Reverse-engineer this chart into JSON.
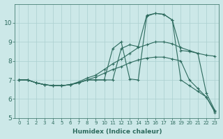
{
  "xlabel": "Humidex (Indice chaleur)",
  "background_color": "#cce8e8",
  "grid_color": "#aacfcf",
  "line_color": "#2d6b5e",
  "xlim": [
    -0.5,
    23.5
  ],
  "ylim": [
    5,
    11
  ],
  "yticks": [
    5,
    6,
    7,
    8,
    9,
    10
  ],
  "xticks": [
    0,
    1,
    2,
    3,
    4,
    5,
    6,
    7,
    8,
    9,
    10,
    11,
    12,
    13,
    14,
    15,
    16,
    17,
    18,
    19,
    20,
    21,
    22,
    23
  ],
  "lines": [
    {
      "x": [
        0,
        1,
        2,
        3,
        4,
        5,
        6,
        7,
        8,
        9,
        10,
        11,
        12,
        13,
        14,
        15,
        16,
        17,
        18,
        19,
        20,
        21,
        22,
        23
      ],
      "y": [
        7.0,
        7.0,
        6.85,
        6.75,
        6.7,
        6.7,
        6.75,
        6.9,
        7.1,
        7.25,
        7.55,
        7.85,
        8.1,
        8.4,
        8.7,
        8.85,
        9.0,
        9.0,
        8.9,
        8.7,
        8.55,
        8.4,
        8.3,
        8.25
      ]
    },
    {
      "x": [
        0,
        1,
        2,
        3,
        4,
        5,
        6,
        7,
        8,
        9,
        10,
        11,
        12,
        13,
        14,
        15,
        16,
        17,
        18,
        19,
        20,
        21,
        22,
        23
      ],
      "y": [
        7.0,
        7.0,
        6.85,
        6.75,
        6.7,
        6.7,
        6.75,
        6.85,
        7.0,
        7.15,
        7.35,
        7.55,
        7.7,
        7.9,
        8.05,
        8.15,
        8.2,
        8.2,
        8.1,
        8.0,
        7.0,
        6.55,
        6.1,
        5.3
      ]
    },
    {
      "x": [
        0,
        1,
        2,
        3,
        4,
        5,
        6,
        7,
        8,
        9,
        10,
        11,
        12,
        13,
        14,
        15,
        16,
        17,
        18,
        19,
        20,
        21,
        22,
        23
      ],
      "y": [
        7.0,
        7.0,
        6.85,
        6.75,
        6.7,
        6.7,
        6.75,
        6.85,
        7.0,
        7.0,
        7.0,
        7.0,
        8.65,
        8.85,
        8.75,
        10.4,
        10.5,
        10.45,
        10.15,
        8.55,
        8.5,
        8.4,
        6.3,
        5.4
      ]
    },
    {
      "x": [
        0,
        1,
        2,
        3,
        4,
        5,
        6,
        7,
        8,
        9,
        10,
        11,
        12,
        13,
        14,
        15,
        16,
        17,
        18,
        19,
        20,
        21,
        22,
        23
      ],
      "y": [
        7.0,
        7.0,
        6.85,
        6.75,
        6.7,
        6.7,
        6.75,
        6.85,
        7.0,
        7.0,
        7.0,
        8.65,
        9.0,
        7.05,
        7.0,
        10.35,
        10.5,
        10.45,
        10.15,
        7.0,
        6.7,
        6.4,
        6.1,
        5.35
      ]
    }
  ]
}
